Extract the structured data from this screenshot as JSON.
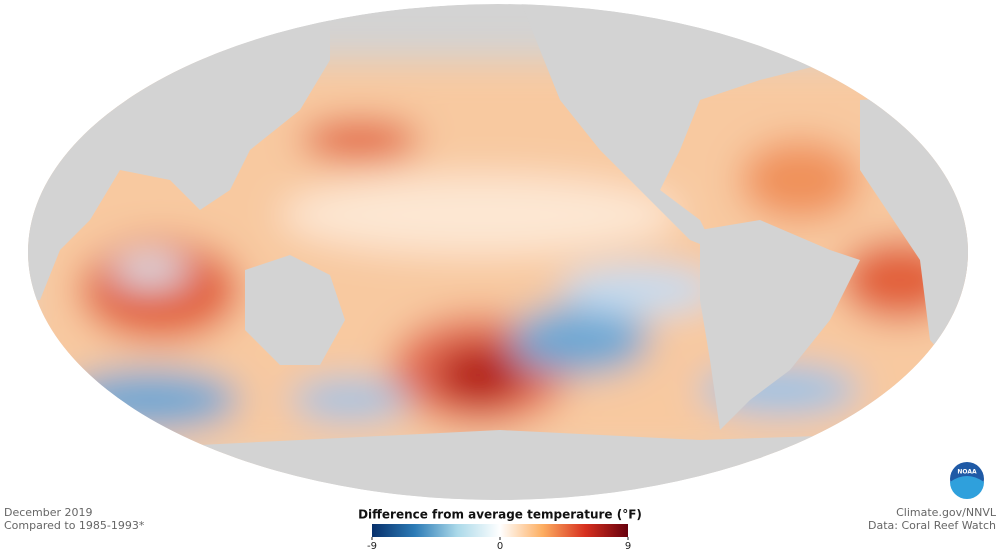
{
  "caption": {
    "date": "December 2019",
    "baseline": "Compared to 1985-1993*"
  },
  "credits": {
    "source": "Climate.gov/NNVL",
    "data": "Data: Coral Reef Watch",
    "logo": "NOAA"
  },
  "colorbar": {
    "title": "Difference from average temperature (°F)",
    "lim": [
      -9,
      9
    ],
    "ticks": [
      -9,
      0,
      9
    ],
    "colors": [
      "#08306b",
      "#2c7bb6",
      "#abd9e9",
      "#ffffff",
      "#fdae61",
      "#d7301f",
      "#67000d"
    ]
  }
}
